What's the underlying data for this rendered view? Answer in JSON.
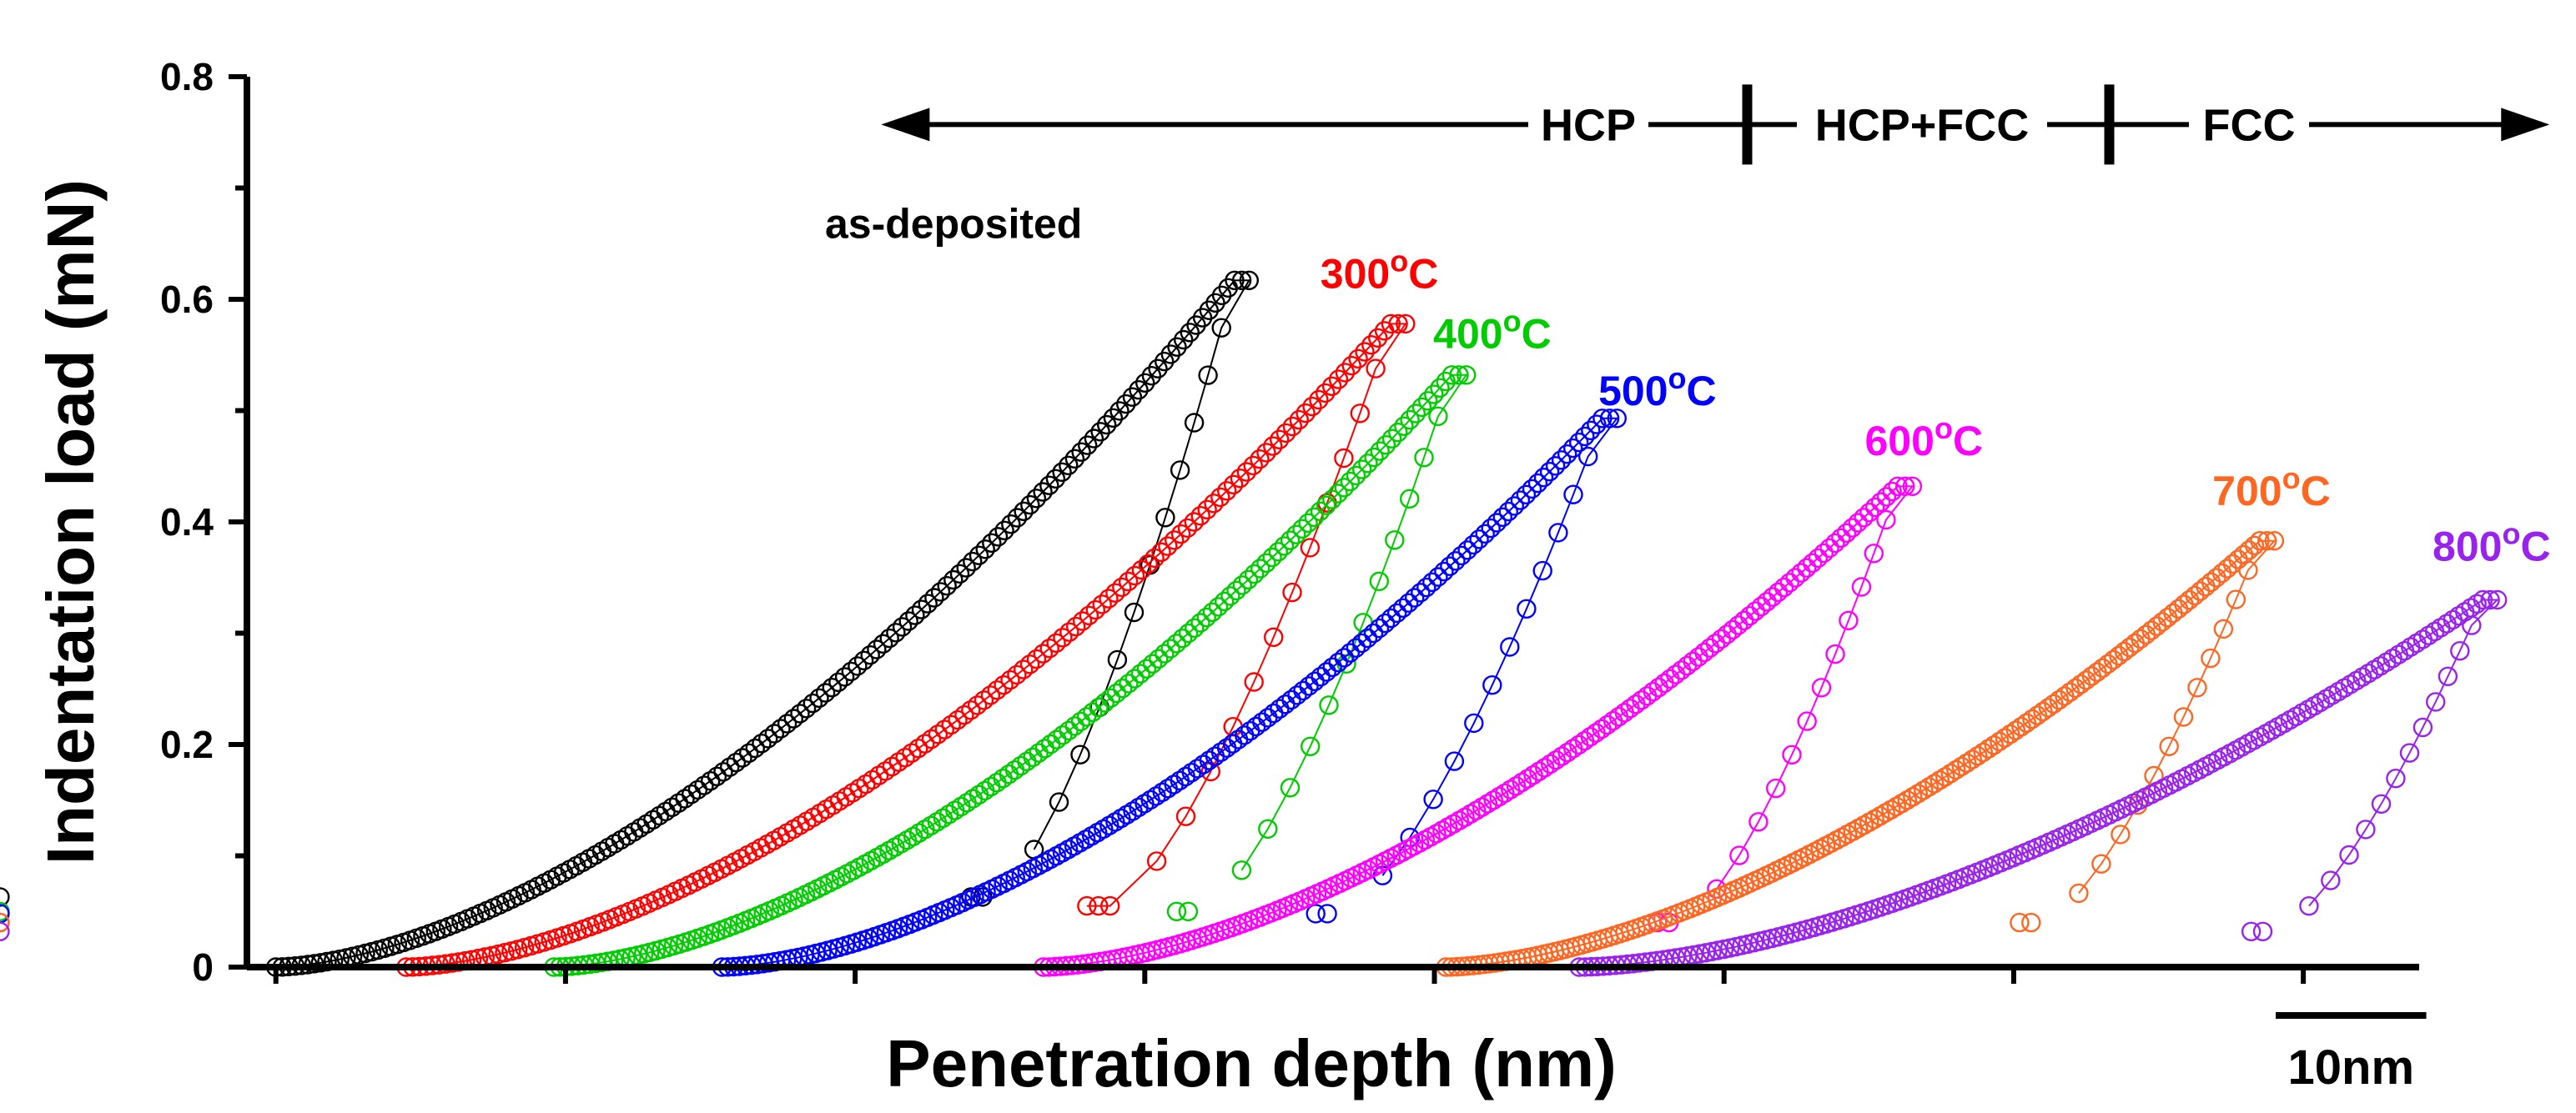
{
  "chart_data": {
    "type": "scatter",
    "title": "",
    "xlabel": "Penetration depth (nm)",
    "ylabel": "Indentation load (mN)",
    "ylim": [
      0,
      0.8
    ],
    "yticks": [
      0,
      0.2,
      0.4,
      0.6,
      0.8
    ],
    "ytick_labels": [
      "0",
      "0.2",
      "0.4",
      "0.6",
      "0.8"
    ],
    "xlim": [
      -1,
      74
    ],
    "x_ticks_unlabeled": [
      0,
      10,
      20,
      30,
      40,
      50,
      60,
      70
    ],
    "scale_bar": {
      "label": "10nm",
      "length": 5.2
    },
    "phase_annotation": {
      "labels": [
        "HCP",
        "HCP+FCC",
        "FCC"
      ],
      "boundaries": [
        50.8,
        63.3
      ],
      "arrow_from": 20.9,
      "arrow_to": 78.5,
      "y": 0.757
    },
    "series": [
      {
        "name": "as-deposited",
        "label": "as-deposited",
        "color": "#000000",
        "x_offset": 0.0,
        "h_max": 33.1,
        "p_max": 0.617,
        "h_final": 24.8,
        "p_final": 0.063,
        "label_pos": [
          23.4,
          0.655
        ]
      },
      {
        "name": "300°C",
        "label": "300",
        "color": "#ff0000",
        "x_offset": 4.5,
        "h_max": 38.5,
        "p_max": 0.578,
        "h_final": 28.8,
        "p_final": 0.055,
        "label_pos": [
          38.1,
          0.61
        ]
      },
      {
        "name": "400°C",
        "label": "400",
        "color": "#00cc00",
        "x_offset": 9.6,
        "h_max": 40.6,
        "p_max": 0.532,
        "h_final": 31.9,
        "p_final": 0.05,
        "label_pos": [
          42.0,
          0.556
        ]
      },
      {
        "name": "500°C",
        "label": "500",
        "color": "#0000ff",
        "x_offset": 15.4,
        "h_max": 45.8,
        "p_max": 0.493,
        "h_final": 36.7,
        "p_final": 0.048,
        "label_pos": [
          47.7,
          0.505
        ]
      },
      {
        "name": "600°C",
        "label": "600",
        "color": "#ff00ff",
        "x_offset": 26.5,
        "h_max": 56.0,
        "p_max": 0.432,
        "h_final": 48.5,
        "p_final": 0.04,
        "label_pos": [
          56.9,
          0.46
        ]
      },
      {
        "name": "700°C",
        "label": "700",
        "color": "#ff6622",
        "x_offset": 40.4,
        "h_max": 68.5,
        "p_max": 0.383,
        "h_final": 61.0,
        "p_final": 0.04,
        "label_pos": [
          68.9,
          0.415
        ]
      },
      {
        "name": "800°C",
        "label": "800",
        "color": "#9922ee",
        "x_offset": 45.0,
        "h_max": 76.2,
        "p_max": 0.33,
        "h_final": 69.0,
        "p_final": 0.032,
        "label_pos": [
          76.5,
          0.365
        ]
      }
    ]
  }
}
